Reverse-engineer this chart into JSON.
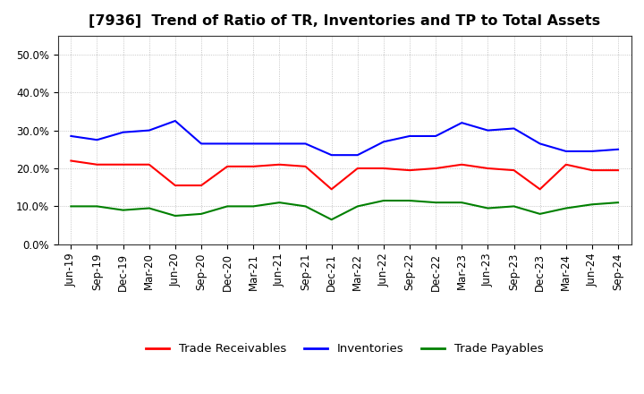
{
  "title": "[7936]  Trend of Ratio of TR, Inventories and TP to Total Assets",
  "x_labels": [
    "Jun-19",
    "Sep-19",
    "Dec-19",
    "Mar-20",
    "Jun-20",
    "Sep-20",
    "Dec-20",
    "Mar-21",
    "Jun-21",
    "Sep-21",
    "Dec-21",
    "Mar-22",
    "Jun-22",
    "Sep-22",
    "Dec-22",
    "Mar-23",
    "Jun-23",
    "Sep-23",
    "Dec-23",
    "Mar-24",
    "Jun-24",
    "Sep-24"
  ],
  "trade_receivables": [
    22.0,
    21.0,
    21.0,
    21.0,
    15.5,
    15.5,
    20.5,
    20.5,
    21.0,
    20.5,
    14.5,
    20.0,
    20.0,
    19.5,
    20.0,
    21.0,
    20.0,
    19.5,
    14.5,
    21.0,
    19.5,
    19.5
  ],
  "inventories": [
    28.5,
    27.5,
    29.5,
    30.0,
    32.5,
    26.5,
    26.5,
    26.5,
    26.5,
    26.5,
    23.5,
    23.5,
    27.0,
    28.5,
    28.5,
    32.0,
    30.0,
    30.5,
    26.5,
    24.5,
    24.5,
    25.0
  ],
  "trade_payables": [
    10.0,
    10.0,
    9.0,
    9.5,
    7.5,
    8.0,
    10.0,
    10.0,
    11.0,
    10.0,
    6.5,
    10.0,
    11.5,
    11.5,
    11.0,
    11.0,
    9.5,
    10.0,
    8.0,
    9.5,
    10.5,
    11.0
  ],
  "tr_color": "#ff0000",
  "inv_color": "#0000ff",
  "tp_color": "#008000",
  "ylim": [
    0,
    55
  ],
  "yticks": [
    0,
    10,
    20,
    30,
    40,
    50
  ],
  "ytick_labels": [
    "0.0%",
    "10.0%",
    "20.0%",
    "30.0%",
    "40.0%",
    "50.0%"
  ],
  "background_color": "#ffffff",
  "plot_bg_color": "#ffffff",
  "grid_color": "#999999",
  "legend_labels": [
    "Trade Receivables",
    "Inventories",
    "Trade Payables"
  ],
  "title_fontsize": 11.5,
  "tick_fontsize": 8.5,
  "legend_fontsize": 9.5,
  "linewidth": 1.5
}
